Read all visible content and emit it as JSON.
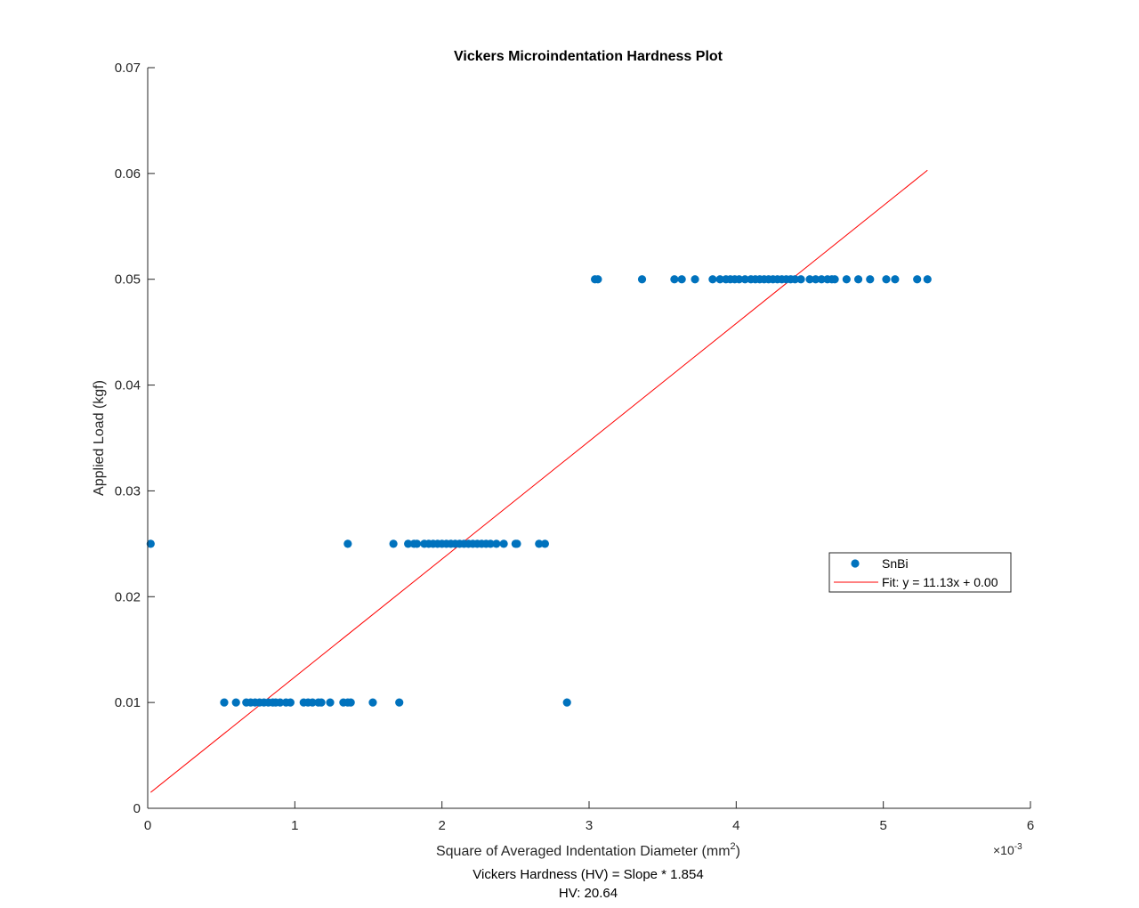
{
  "window": {
    "background": "#ffffff"
  },
  "chart_data": {
    "type": "scatter",
    "title": "Vickers Microindentation Hardness Plot",
    "xlabel": "Square of Averaged Indentation Diameter (mm",
    "xlabel_superscript": "2",
    "xlabel_close": ")",
    "ylabel": "Applied Load (kgf)",
    "x_exponent_base": "×10",
    "x_exponent_power": "-3",
    "x_scale": 0.001,
    "xlim": [
      0,
      6
    ],
    "ylim": [
      0,
      0.07
    ],
    "xticks": [
      0,
      1,
      2,
      3,
      4,
      5,
      6
    ],
    "yticks": [
      0,
      0.01,
      0.02,
      0.03,
      0.04,
      0.05,
      0.06,
      0.07
    ],
    "ytick_labels": [
      "0",
      "0.01",
      "0.02",
      "0.03",
      "0.04",
      "0.05",
      "0.06",
      "0.07"
    ],
    "grid": false,
    "legend_position": "center-right",
    "series": [
      {
        "name": "SnBi",
        "kind": "scatter",
        "color": "#0072BD",
        "points": [
          [
            0.52,
            0.01
          ],
          [
            0.6,
            0.01
          ],
          [
            0.67,
            0.01
          ],
          [
            0.7,
            0.01
          ],
          [
            0.73,
            0.01
          ],
          [
            0.76,
            0.01
          ],
          [
            0.79,
            0.01
          ],
          [
            0.82,
            0.01
          ],
          [
            0.85,
            0.01
          ],
          [
            0.87,
            0.01
          ],
          [
            0.9,
            0.01
          ],
          [
            0.94,
            0.01
          ],
          [
            0.97,
            0.01
          ],
          [
            1.06,
            0.01
          ],
          [
            1.09,
            0.01
          ],
          [
            1.12,
            0.01
          ],
          [
            1.16,
            0.01
          ],
          [
            1.18,
            0.01
          ],
          [
            1.24,
            0.01
          ],
          [
            1.33,
            0.01
          ],
          [
            1.36,
            0.01
          ],
          [
            1.38,
            0.01
          ],
          [
            1.53,
            0.01
          ],
          [
            1.71,
            0.01
          ],
          [
            2.85,
            0.01
          ],
          [
            0.02,
            0.025
          ],
          [
            1.36,
            0.025
          ],
          [
            1.67,
            0.025
          ],
          [
            1.77,
            0.025
          ],
          [
            1.81,
            0.025
          ],
          [
            1.83,
            0.025
          ],
          [
            1.88,
            0.025
          ],
          [
            1.91,
            0.025
          ],
          [
            1.94,
            0.025
          ],
          [
            1.97,
            0.025
          ],
          [
            2.0,
            0.025
          ],
          [
            2.03,
            0.025
          ],
          [
            2.06,
            0.025
          ],
          [
            2.09,
            0.025
          ],
          [
            2.12,
            0.025
          ],
          [
            2.15,
            0.025
          ],
          [
            2.18,
            0.025
          ],
          [
            2.21,
            0.025
          ],
          [
            2.24,
            0.025
          ],
          [
            2.27,
            0.025
          ],
          [
            2.3,
            0.025
          ],
          [
            2.33,
            0.025
          ],
          [
            2.37,
            0.025
          ],
          [
            2.42,
            0.025
          ],
          [
            2.5,
            0.025
          ],
          [
            2.51,
            0.025
          ],
          [
            2.66,
            0.025
          ],
          [
            2.7,
            0.025
          ],
          [
            3.04,
            0.05
          ],
          [
            3.06,
            0.05
          ],
          [
            3.36,
            0.05
          ],
          [
            3.58,
            0.05
          ],
          [
            3.63,
            0.05
          ],
          [
            3.72,
            0.05
          ],
          [
            3.84,
            0.05
          ],
          [
            3.89,
            0.05
          ],
          [
            3.93,
            0.05
          ],
          [
            3.96,
            0.05
          ],
          [
            3.99,
            0.05
          ],
          [
            4.02,
            0.05
          ],
          [
            4.06,
            0.05
          ],
          [
            4.1,
            0.05
          ],
          [
            4.13,
            0.05
          ],
          [
            4.16,
            0.05
          ],
          [
            4.19,
            0.05
          ],
          [
            4.22,
            0.05
          ],
          [
            4.25,
            0.05
          ],
          [
            4.28,
            0.05
          ],
          [
            4.31,
            0.05
          ],
          [
            4.34,
            0.05
          ],
          [
            4.37,
            0.05
          ],
          [
            4.4,
            0.05
          ],
          [
            4.44,
            0.05
          ],
          [
            4.5,
            0.05
          ],
          [
            4.54,
            0.05
          ],
          [
            4.58,
            0.05
          ],
          [
            4.62,
            0.05
          ],
          [
            4.65,
            0.05
          ],
          [
            4.67,
            0.05
          ],
          [
            4.75,
            0.05
          ],
          [
            4.83,
            0.05
          ],
          [
            4.91,
            0.05
          ],
          [
            5.02,
            0.05
          ],
          [
            5.08,
            0.05
          ],
          [
            5.23,
            0.05
          ],
          [
            5.3,
            0.05
          ]
        ]
      },
      {
        "name": "Fit: y = 11.13x + 0.00",
        "kind": "line",
        "color": "#FF0000",
        "points": [
          [
            0.02,
            0.0015
          ],
          [
            5.3,
            0.0603
          ]
        ]
      }
    ],
    "annotations": [
      "Vickers Hardness (HV) = Slope * 1.854",
      "HV: 20.64"
    ]
  }
}
